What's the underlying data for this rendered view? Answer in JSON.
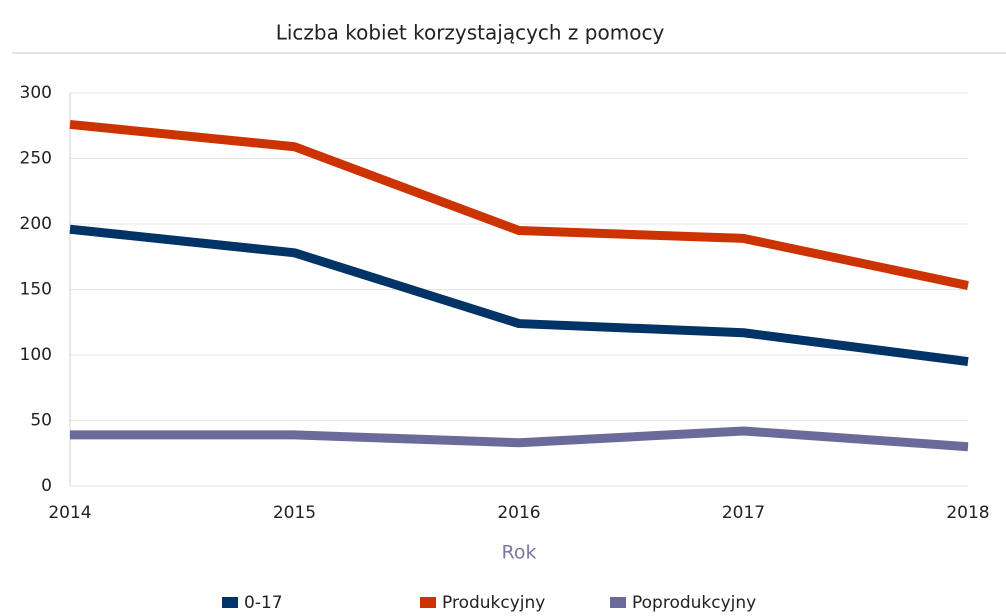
{
  "chart_data": {
    "type": "line",
    "title": "Liczba kobiet korzystających z pomocy",
    "x_label": "Rok",
    "categories": [
      "2014",
      "2015",
      "2016",
      "2017",
      "2018"
    ],
    "series": [
      {
        "name": "0-17",
        "color": "#003366",
        "values": [
          196,
          178,
          124,
          117,
          95
        ]
      },
      {
        "name": "Produkcyjny",
        "color": "#cc3300",
        "values": [
          276,
          259,
          195,
          189,
          153
        ]
      },
      {
        "name": "Poprodukcyjny",
        "color": "#6b6b9b",
        "values": [
          39,
          39,
          33,
          42,
          30
        ]
      }
    ],
    "ylim": [
      0,
      300
    ],
    "yticks": [
      0,
      50,
      100,
      150,
      200,
      250,
      300
    ],
    "grid": true,
    "legend": "bottom"
  }
}
